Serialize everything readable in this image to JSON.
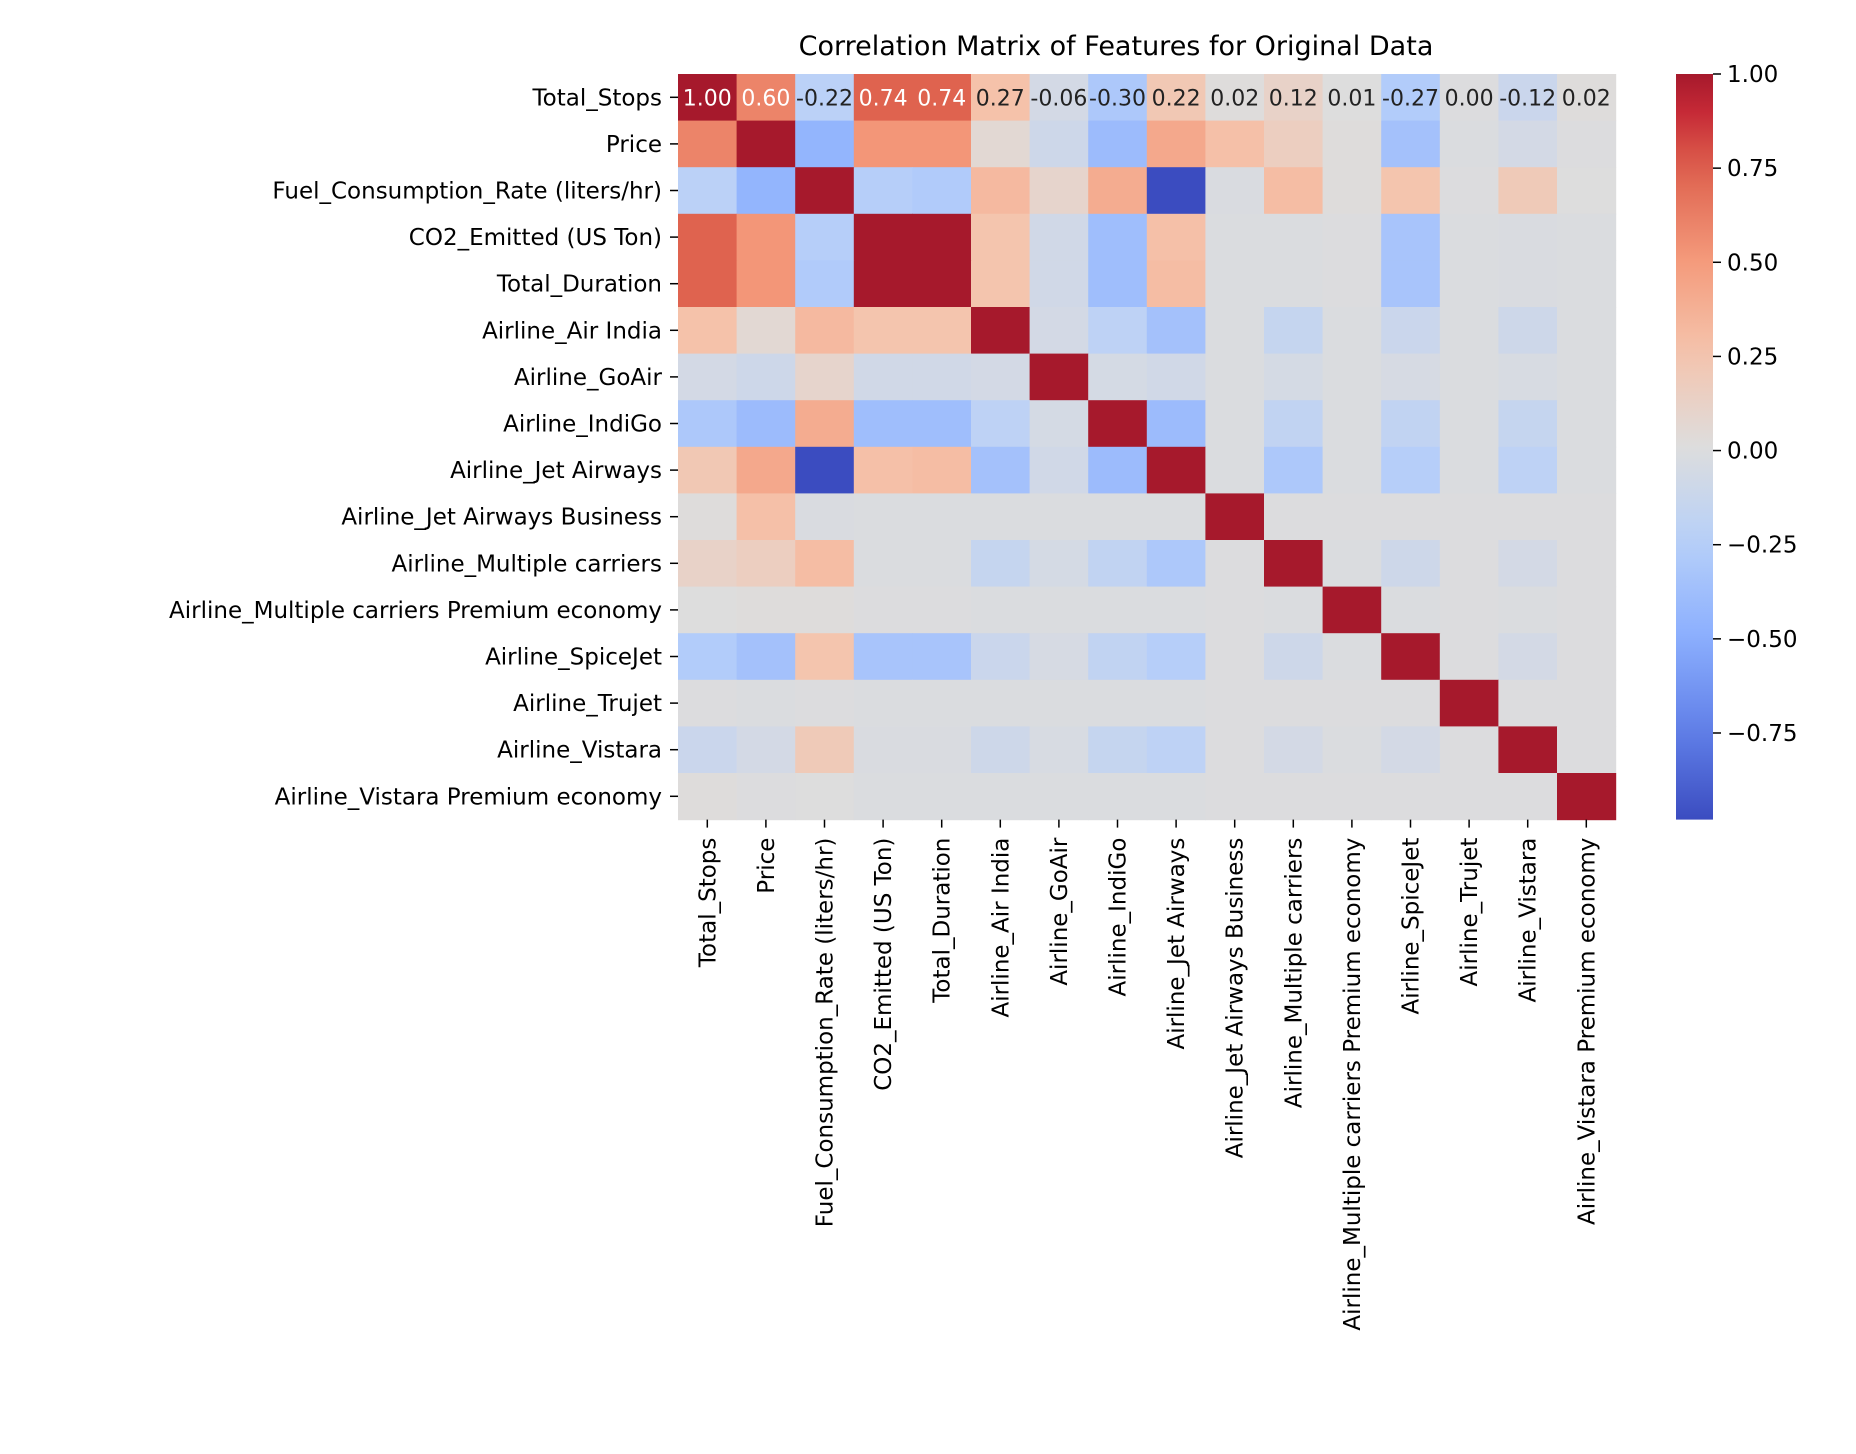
{
  "chart_data": {
    "type": "heatmap",
    "title": "Correlation Matrix of Features for Original Data",
    "xlabel": "",
    "ylabel": "",
    "labels": [
      "Total_Stops",
      "Price",
      "Fuel_Consumption_Rate (liters/hr)",
      "CO2_Emitted (US Ton)",
      "Total_Duration",
      "Airline_Air India",
      "Airline_GoAir",
      "Airline_IndiGo",
      "Airline_Jet Airways",
      "Airline_Jet Airways Business",
      "Airline_Multiple carriers",
      "Airline_Multiple carriers Premium economy",
      "Airline_SpiceJet",
      "Airline_Trujet",
      "Airline_Vistara",
      "Airline_Vistara Premium economy"
    ],
    "values": [
      [
        1.0,
        0.6,
        -0.22,
        0.74,
        0.74,
        0.27,
        -0.06,
        -0.3,
        0.22,
        0.02,
        0.12,
        0.01,
        -0.27,
        0.0,
        -0.12,
        0.02
      ],
      [
        0.6,
        1.0,
        -0.45,
        0.52,
        0.52,
        0.06,
        -0.1,
        -0.4,
        0.42,
        0.28,
        0.16,
        0.02,
        -0.35,
        -0.01,
        -0.06,
        0.0
      ],
      [
        -0.22,
        -0.45,
        1.0,
        -0.25,
        -0.28,
        0.32,
        0.1,
        0.4,
        -0.98,
        -0.02,
        0.3,
        0.02,
        0.25,
        0.0,
        0.2,
        0.01
      ],
      [
        0.74,
        0.52,
        -0.25,
        1.0,
        1.0,
        0.25,
        -0.08,
        -0.38,
        0.28,
        -0.01,
        -0.01,
        0.0,
        -0.33,
        -0.01,
        -0.02,
        -0.01
      ],
      [
        0.74,
        0.52,
        -0.28,
        1.0,
        1.0,
        0.25,
        -0.08,
        -0.38,
        0.3,
        -0.01,
        -0.01,
        0.0,
        -0.33,
        -0.01,
        -0.02,
        -0.01
      ],
      [
        0.27,
        0.06,
        0.32,
        0.25,
        0.25,
        1.0,
        -0.06,
        -0.2,
        -0.35,
        -0.01,
        -0.15,
        -0.01,
        -0.12,
        -0.01,
        -0.1,
        -0.01
      ],
      [
        -0.06,
        -0.1,
        0.1,
        -0.08,
        -0.08,
        -0.06,
        1.0,
        -0.05,
        -0.08,
        -0.01,
        -0.05,
        -0.01,
        -0.04,
        -0.01,
        -0.03,
        -0.01
      ],
      [
        -0.3,
        -0.4,
        0.4,
        -0.38,
        -0.38,
        -0.2,
        -0.05,
        1.0,
        -0.4,
        -0.01,
        -0.18,
        -0.01,
        -0.18,
        -0.01,
        -0.15,
        -0.01
      ],
      [
        0.22,
        0.42,
        -0.98,
        0.28,
        0.3,
        -0.35,
        -0.08,
        -0.4,
        1.0,
        -0.01,
        -0.3,
        -0.01,
        -0.25,
        -0.01,
        -0.2,
        -0.01
      ],
      [
        0.02,
        0.28,
        -0.02,
        -0.01,
        -0.01,
        -0.01,
        -0.01,
        -0.01,
        -0.01,
        1.0,
        0.0,
        0.0,
        0.0,
        0.0,
        0.0,
        0.0
      ],
      [
        0.12,
        0.16,
        0.3,
        -0.01,
        -0.01,
        -0.15,
        -0.05,
        -0.18,
        -0.3,
        0.0,
        1.0,
        -0.01,
        -0.1,
        0.0,
        -0.06,
        0.0
      ],
      [
        0.01,
        0.02,
        0.02,
        0.0,
        0.0,
        -0.01,
        -0.01,
        -0.01,
        -0.01,
        0.0,
        -0.01,
        1.0,
        -0.01,
        0.0,
        -0.01,
        0.0
      ],
      [
        -0.27,
        -0.35,
        0.25,
        -0.33,
        -0.33,
        -0.12,
        -0.04,
        -0.18,
        -0.25,
        0.0,
        -0.1,
        -0.01,
        1.0,
        0.0,
        -0.06,
        0.0
      ],
      [
        0.0,
        -0.01,
        0.0,
        -0.01,
        -0.01,
        -0.01,
        -0.01,
        -0.01,
        -0.01,
        0.0,
        0.0,
        0.0,
        0.0,
        1.0,
        0.0,
        0.0
      ],
      [
        -0.12,
        -0.06,
        0.2,
        -0.02,
        -0.02,
        -0.1,
        -0.03,
        -0.15,
        -0.2,
        0.0,
        -0.06,
        -0.01,
        -0.06,
        0.0,
        1.0,
        0.0
      ],
      [
        0.02,
        0.0,
        0.01,
        -0.01,
        -0.01,
        -0.01,
        -0.01,
        -0.01,
        -0.01,
        0.0,
        0.0,
        0.0,
        0.0,
        0.0,
        0.0,
        1.0
      ]
    ],
    "annotated_row_text": [
      "1.00",
      "0.60",
      "-0.22",
      "0.74",
      "0.74",
      "0.27",
      "-0.06",
      "-0.30",
      "0.22",
      "0.02",
      "0.12",
      "0.01",
      "-0.27",
      "0.00",
      "-0.12",
      "0.02"
    ],
    "colormap": "coolwarm",
    "vmin": -0.98,
    "vmax": 1.0,
    "colorbar_ticks": [
      "1.00",
      "0.75",
      "0.50",
      "0.25",
      "0.00",
      "−0.25",
      "−0.50",
      "−0.75"
    ],
    "colorbar_tick_values": [
      1.0,
      0.75,
      0.5,
      0.25,
      0.0,
      -0.25,
      -0.5,
      -0.75
    ],
    "grid": false,
    "legend": "colorbar-right"
  }
}
